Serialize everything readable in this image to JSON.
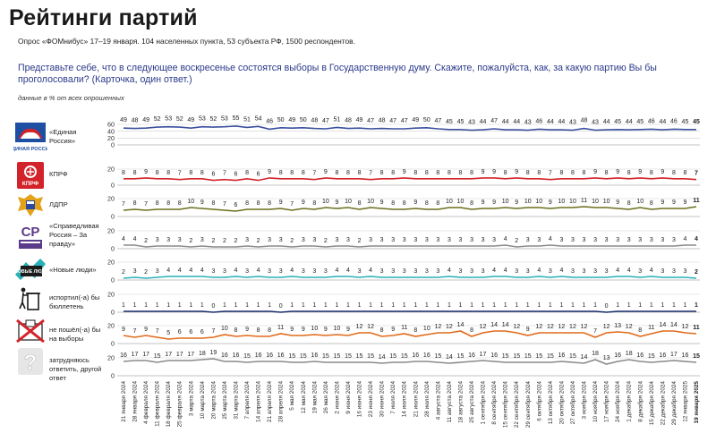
{
  "header": {
    "title": "Рейтинги партий",
    "subtitle": "Опрос «ФОМнибус» 17–19 января. 104 населенных пункта, 53 субъекта РФ, 1500 респондентов.",
    "question": "Представьте себе, что в следующее воскресенье состоятся выборы в Государственную думу. Скажите, пожалуйста, как, за какую партию Вы бы проголосовали? (Карточка, один ответ.)",
    "note": "данные в % от всех опрошенных"
  },
  "parties": [
    {
      "label": "«Единая Россия»",
      "icon": "united-russia-bear-icon",
      "icon_text": "ЕДИНАЯ РОССИЯ"
    },
    {
      "label": "КПРФ",
      "icon": "kprf-hammer-sickle-icon",
      "icon_text": "КПРФ"
    },
    {
      "label": "ЛДПР",
      "icon": "ldpr-eagle-icon",
      "icon_text": ""
    },
    {
      "label": "«Справедливая Россия – За правду»",
      "icon": "sr-logo-icon",
      "icon_text": "СР"
    },
    {
      "label": "«Новые люди»",
      "icon": "new-people-logo-icon",
      "icon_text": "НОВЫЕ ЛЮДИ"
    },
    {
      "label": "испортил(-а) бы бюллетень",
      "icon": "trash-bin-icon",
      "icon_text": ""
    },
    {
      "label": "не пошёл(-а) бы на выборы",
      "icon": "ballot-box-crossed-icon",
      "icon_text": ""
    },
    {
      "label": "затрудняюсь ответить, другой ответ",
      "icon": "question-mark-icon",
      "icon_text": "?"
    }
  ],
  "chart_data": {
    "type": "line",
    "x": [
      "21 января 2024",
      "28 января 2024",
      "4 февраля 2024",
      "11 февраля 2024",
      "18 февраля 2024",
      "25 февраля 2024",
      "3 марта 2024",
      "10 марта 2024",
      "20 марта 2024",
      "25 марта 2024",
      "31 марта 2024",
      "7 апреля 2024",
      "14 апреля 2024",
      "21 апреля 2024",
      "28 апреля 2024",
      "5 мая 2024",
      "12 мая 2024",
      "19 мая 2024",
      "26 мая 2024",
      "2 июня 2024",
      "9 июня 2024",
      "16 июня 2024",
      "23 июня 2024",
      "30 июня 2024",
      "7 июля 2024",
      "14 июля 2024",
      "21 июля 2024",
      "28 июля 2024",
      "4 августа 2024",
      "11 августа 2024",
      "18 августа 2024",
      "25 августа 2024",
      "1 сентября 2024",
      "8 сентября 2024",
      "15 сентября 2024",
      "22 сентября 2024",
      "29 сентября 2024",
      "6 октября 2024",
      "13 октября 2024",
      "20 октября 2024",
      "27 октября 2024",
      "3 ноября 2024",
      "10 ноября 2024",
      "17 ноября 2024",
      "24 ноября 2024",
      "1 декабря 2024",
      "8 декабря 2024",
      "15 декабря 2024",
      "22 декабря 2024",
      "29 декабря 2024",
      "12 января 2025",
      "19 января 2025"
    ],
    "ylim_main": [
      0,
      60
    ],
    "ylim_other": [
      0,
      20
    ],
    "yticks_main": [
      "60",
      "40",
      "20",
      "0"
    ],
    "yticks_other": [
      "20",
      "0"
    ],
    "series": [
      {
        "name": "«Единая Россия»",
        "color": "#3a4f9e",
        "values": [
          49,
          48,
          49,
          52,
          53,
          52,
          49,
          53,
          52,
          53,
          55,
          51,
          54,
          46,
          50,
          49,
          50,
          48,
          47,
          51,
          48,
          49,
          47,
          48,
          47,
          47,
          49,
          50,
          47,
          45,
          45,
          43,
          44,
          47,
          44,
          44,
          43,
          46,
          44,
          44,
          43,
          48,
          43,
          44,
          45,
          44,
          45,
          46,
          44,
          46,
          45,
          45
        ]
      },
      {
        "name": "КПРФ",
        "color": "#d2232a",
        "values": [
          8,
          8,
          9,
          8,
          8,
          7,
          8,
          8,
          6,
          7,
          6,
          8,
          6,
          9,
          8,
          8,
          8,
          7,
          9,
          8,
          8,
          8,
          7,
          8,
          8,
          9,
          8,
          8,
          8,
          8,
          8,
          8,
          9,
          9,
          8,
          9,
          8,
          8,
          7,
          8,
          8,
          8,
          9,
          8,
          9,
          8,
          9,
          8,
          9,
          8,
          8,
          7
        ]
      },
      {
        "name": "ЛДПР",
        "color": "#6b6f1c",
        "values": [
          7,
          8,
          7,
          8,
          8,
          8,
          10,
          9,
          8,
          7,
          6,
          8,
          8,
          8,
          9,
          7,
          9,
          8,
          10,
          9,
          10,
          8,
          10,
          9,
          8,
          8,
          9,
          8,
          8,
          10,
          10,
          8,
          9,
          9,
          10,
          9,
          10,
          10,
          9,
          10,
          10,
          11,
          10,
          10,
          9,
          8,
          10,
          8,
          9,
          9,
          9,
          11
        ]
      },
      {
        "name": "«Справедливая Россия – За правду»",
        "color": "#8a8a8a",
        "values": [
          4,
          4,
          2,
          3,
          3,
          3,
          2,
          3,
          2,
          2,
          2,
          3,
          2,
          3,
          3,
          2,
          3,
          3,
          2,
          3,
          3,
          2,
          3,
          3,
          3,
          3,
          3,
          3,
          3,
          3,
          3,
          3,
          3,
          3,
          4,
          2,
          3,
          3,
          4,
          3,
          3,
          3,
          3,
          3,
          3,
          3,
          3,
          3,
          3,
          3,
          4,
          4
        ]
      },
      {
        "name": "«Новые люди»",
        "color": "#2ab0b8",
        "values": [
          2,
          3,
          2,
          3,
          4,
          4,
          4,
          4,
          3,
          3,
          4,
          3,
          4,
          3,
          3,
          4,
          3,
          3,
          3,
          4,
          4,
          3,
          4,
          3,
          3,
          3,
          3,
          3,
          3,
          4,
          3,
          3,
          3,
          4,
          4,
          3,
          3,
          4,
          3,
          4,
          3,
          3,
          3,
          3,
          4,
          4,
          3,
          4,
          3,
          3,
          3,
          2
        ]
      },
      {
        "name": "испортил(-а) бы бюллетень",
        "color": "#1c2e6e",
        "values": [
          1,
          1,
          1,
          1,
          1,
          1,
          1,
          1,
          0,
          1,
          1,
          1,
          1,
          1,
          0,
          1,
          1,
          1,
          1,
          1,
          1,
          1,
          1,
          1,
          1,
          1,
          1,
          1,
          1,
          1,
          1,
          1,
          1,
          1,
          1,
          1,
          1,
          1,
          1,
          1,
          1,
          1,
          1,
          0,
          1,
          1,
          1,
          1,
          1,
          1,
          1,
          1
        ]
      },
      {
        "name": "не пошёл(-а) бы на выборы",
        "color": "#e06a1a",
        "values": [
          9,
          7,
          9,
          7,
          5,
          6,
          6,
          6,
          7,
          10,
          8,
          9,
          8,
          8,
          11,
          9,
          9,
          10,
          9,
          10,
          9,
          12,
          12,
          8,
          9,
          11,
          8,
          10,
          12,
          12,
          14,
          8,
          12,
          14,
          14,
          12,
          9,
          12,
          12,
          12,
          12,
          12,
          7,
          12,
          13,
          12,
          8,
          11,
          14,
          14,
          12,
          11
        ]
      },
      {
        "name": "затрудняюсь ответить, другой ответ",
        "color": "#8a8a8a",
        "values": [
          16,
          17,
          17,
          15,
          17,
          17,
          17,
          18,
          19,
          16,
          16,
          15,
          16,
          16,
          16,
          15,
          15,
          16,
          15,
          15,
          15,
          15,
          15,
          14,
          15,
          15,
          16,
          16,
          15,
          14,
          15,
          16,
          17,
          16,
          15,
          15,
          15,
          15,
          15,
          16,
          15,
          14,
          18,
          13,
          16,
          18,
          16,
          15,
          16,
          17,
          16,
          15
        ]
      }
    ]
  }
}
